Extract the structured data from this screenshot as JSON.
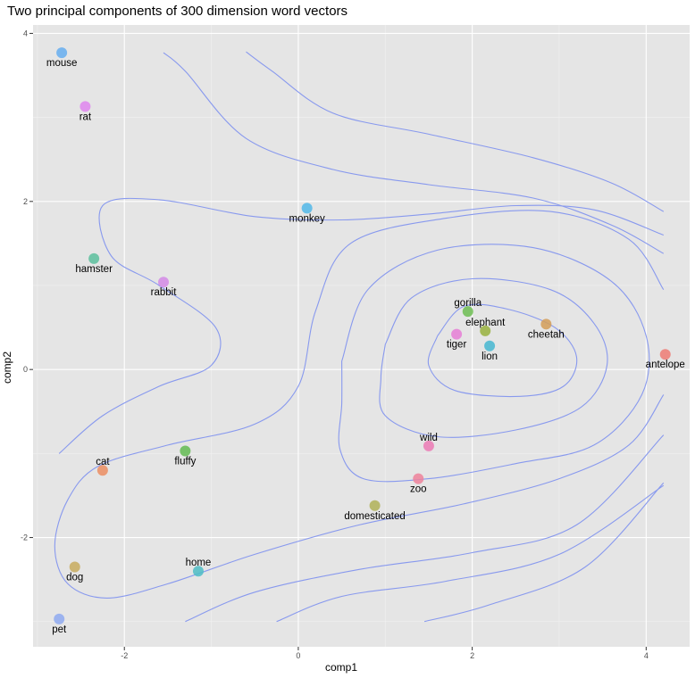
{
  "chart_data": {
    "type": "scatter",
    "title": "Two principal components of 300 dimension word vectors",
    "xlabel": "comp1",
    "ylabel": "comp2",
    "xlim": [
      -3.05,
      4.5
    ],
    "ylim": [
      -3.3,
      4.1
    ],
    "x_ticks": [
      -2,
      0,
      2,
      4
    ],
    "y_ticks": [
      -2,
      0,
      2,
      4
    ],
    "x_tick_labels": [
      "-2",
      "0",
      "2",
      "4"
    ],
    "y_tick_labels": [
      "-2",
      "0",
      "2",
      "4"
    ],
    "grid": true,
    "legend": "none",
    "contour_color": "#8899ee",
    "panel_color": "#e5e5e5",
    "points": [
      {
        "label": "mouse",
        "x": -2.72,
        "y": 3.77,
        "color": "#66aef0",
        "label_pos": "below"
      },
      {
        "label": "rat",
        "x": -2.45,
        "y": 3.13,
        "color": "#df86ee",
        "label_pos": "below"
      },
      {
        "label": "monkey",
        "x": 0.1,
        "y": 1.92,
        "color": "#52b9e9",
        "label_pos": "below"
      },
      {
        "label": "hamster",
        "x": -2.35,
        "y": 1.32,
        "color": "#5cc09e",
        "label_pos": "below"
      },
      {
        "label": "rabbit",
        "x": -1.55,
        "y": 1.04,
        "color": "#d38ae6",
        "label_pos": "below"
      },
      {
        "label": "gorilla",
        "x": 1.95,
        "y": 0.69,
        "color": "#6dbd52",
        "label_pos": "above"
      },
      {
        "label": "elephant",
        "x": 2.15,
        "y": 0.46,
        "color": "#99b23e",
        "label_pos": "above"
      },
      {
        "label": "cheetah",
        "x": 2.85,
        "y": 0.54,
        "color": "#d39d58",
        "label_pos": "below"
      },
      {
        "label": "tiger",
        "x": 1.82,
        "y": 0.42,
        "color": "#e67ed6",
        "label_pos": "below"
      },
      {
        "label": "lion",
        "x": 2.2,
        "y": 0.28,
        "color": "#46b7d1",
        "label_pos": "below"
      },
      {
        "label": "antelope",
        "x": 4.22,
        "y": 0.18,
        "color": "#ee7b74",
        "label_pos": "below"
      },
      {
        "label": "wild",
        "x": 1.5,
        "y": -0.91,
        "color": "#ec7ab5",
        "label_pos": "above"
      },
      {
        "label": "fluffy",
        "x": -1.3,
        "y": -0.97,
        "color": "#63bb52",
        "label_pos": "below"
      },
      {
        "label": "cat",
        "x": -2.25,
        "y": -1.2,
        "color": "#ec8e63",
        "label_pos": "above"
      },
      {
        "label": "zoo",
        "x": 1.38,
        "y": -1.3,
        "color": "#ee829b",
        "label_pos": "below"
      },
      {
        "label": "domesticated",
        "x": 0.88,
        "y": -1.62,
        "color": "#b0b158",
        "label_pos": "below"
      },
      {
        "label": "dog",
        "x": -2.57,
        "y": -2.35,
        "color": "#c8ab5e",
        "label_pos": "below"
      },
      {
        "label": "home",
        "x": -1.15,
        "y": -2.4,
        "color": "#4dbdc6",
        "label_pos": "above"
      },
      {
        "label": "pet",
        "x": -2.75,
        "y": -2.97,
        "color": "#8faaf1",
        "label_pos": "below"
      }
    ],
    "contours": [
      [
        [
          1.6,
          0.4
        ],
        [
          1.9,
          0.75
        ],
        [
          2.4,
          0.72
        ],
        [
          2.95,
          0.5
        ],
        [
          3.2,
          0.15
        ],
        [
          3.05,
          -0.2
        ],
        [
          2.55,
          -0.32
        ],
        [
          1.8,
          -0.25
        ],
        [
          1.5,
          0.05
        ],
        [
          1.6,
          0.4
        ]
      ],
      [
        [
          1.0,
          0.3
        ],
        [
          1.3,
          0.85
        ],
        [
          2.0,
          1.08
        ],
        [
          2.9,
          0.95
        ],
        [
          3.4,
          0.55
        ],
        [
          3.55,
          0.05
        ],
        [
          3.25,
          -0.45
        ],
        [
          2.5,
          -0.72
        ],
        [
          1.6,
          -0.8
        ],
        [
          1.0,
          -0.55
        ],
        [
          0.95,
          -0.1
        ],
        [
          1.0,
          0.3
        ]
      ],
      [
        [
          0.5,
          0.1
        ],
        [
          0.8,
          0.95
        ],
        [
          1.6,
          1.42
        ],
        [
          2.7,
          1.45
        ],
        [
          3.6,
          1.05
        ],
        [
          4.0,
          0.4
        ],
        [
          3.95,
          -0.3
        ],
        [
          3.4,
          -0.9
        ],
        [
          2.5,
          -1.12
        ],
        [
          1.5,
          -1.3
        ],
        [
          0.75,
          -1.3
        ],
        [
          0.48,
          -0.95
        ],
        [
          0.5,
          -0.4
        ],
        [
          0.5,
          0.1
        ]
      ],
      [
        [
          4.2,
          0.95
        ],
        [
          3.8,
          1.55
        ],
        [
          2.9,
          1.88
        ],
        [
          1.7,
          1.8
        ],
        [
          0.6,
          1.5
        ],
        [
          0.2,
          0.7
        ],
        [
          0.0,
          -0.2
        ],
        [
          -0.5,
          -0.65
        ],
        [
          -1.5,
          -0.9
        ],
        [
          -2.3,
          -1.15
        ],
        [
          -2.65,
          -1.55
        ],
        [
          -2.8,
          -2.1
        ],
        [
          -2.65,
          -2.55
        ],
        [
          -2.2,
          -2.72
        ],
        [
          -1.5,
          -2.55
        ],
        [
          -0.5,
          -2.2
        ],
        [
          0.7,
          -1.85
        ],
        [
          1.9,
          -1.6
        ],
        [
          3.0,
          -1.3
        ],
        [
          3.8,
          -0.9
        ],
        [
          4.2,
          -0.3
        ]
      ],
      [
        [
          -2.75,
          -1.0
        ],
        [
          -2.25,
          -0.55
        ],
        [
          -1.6,
          -0.2
        ],
        [
          -1.0,
          0.05
        ],
        [
          -0.95,
          0.5
        ],
        [
          -1.6,
          1.0
        ],
        [
          -2.15,
          1.35
        ],
        [
          -2.25,
          1.95
        ],
        [
          -1.6,
          2.02
        ],
        [
          -0.5,
          1.82
        ],
        [
          0.5,
          1.78
        ],
        [
          1.5,
          1.85
        ],
        [
          2.5,
          1.95
        ],
        [
          3.4,
          1.9
        ],
        [
          4.2,
          1.6
        ]
      ],
      [
        [
          -1.55,
          3.77
        ],
        [
          -1.3,
          3.55
        ],
        [
          -0.6,
          2.75
        ],
        [
          0.4,
          2.38
        ],
        [
          1.5,
          2.2
        ],
        [
          2.7,
          2.04
        ],
        [
          3.6,
          1.72
        ],
        [
          4.2,
          1.38
        ]
      ],
      [
        [
          -0.6,
          3.78
        ],
        [
          -0.3,
          3.55
        ],
        [
          0.4,
          3.05
        ],
        [
          1.5,
          2.8
        ],
        [
          2.7,
          2.52
        ],
        [
          3.6,
          2.22
        ],
        [
          4.2,
          1.88
        ]
      ],
      [
        [
          -1.3,
          -3.0
        ],
        [
          -0.5,
          -2.65
        ],
        [
          0.7,
          -2.38
        ],
        [
          2.0,
          -2.18
        ],
        [
          3.2,
          -1.85
        ],
        [
          4.2,
          -0.78
        ]
      ],
      [
        [
          -0.25,
          -3.0
        ],
        [
          0.5,
          -2.7
        ],
        [
          1.7,
          -2.52
        ],
        [
          3.0,
          -2.2
        ],
        [
          4.2,
          -1.38
        ]
      ],
      [
        [
          1.45,
          -3.0
        ],
        [
          2.2,
          -2.8
        ],
        [
          3.3,
          -2.35
        ],
        [
          4.2,
          -1.35
        ]
      ]
    ]
  }
}
